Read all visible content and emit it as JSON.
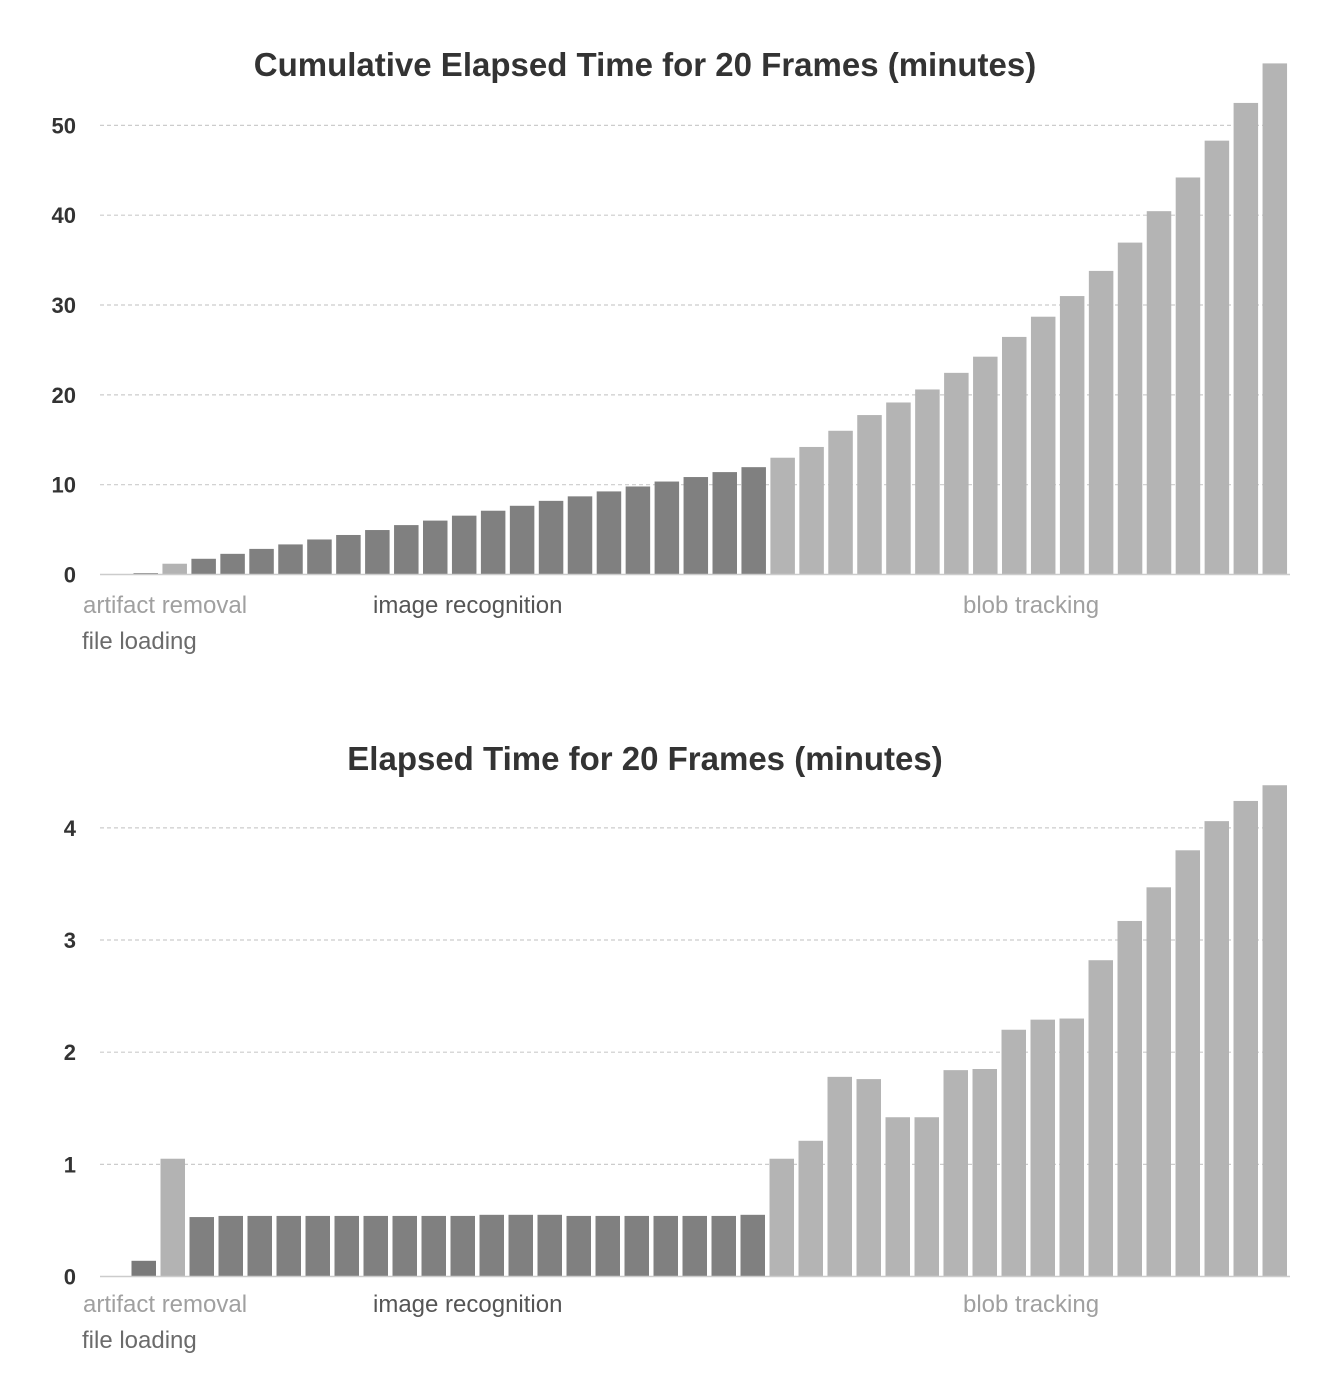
{
  "colors": {
    "file_loading": "#7a7a7a",
    "artifact_removal": "#b3b3b3",
    "image_recognition": "#808080",
    "blob_tracking": "#b4b4b4",
    "label_gray_light": "#a0a0a0",
    "label_gray_dark": "#6b6b6b"
  },
  "chart_data": [
    {
      "type": "bar",
      "title": "Cumulative Elapsed Time for 20 Frames (minutes)",
      "ylim": [
        0,
        56.5
      ],
      "yticks": [
        "0",
        "10",
        "20",
        "30",
        "40",
        "50"
      ],
      "ytick_values": [
        0,
        10,
        20,
        30,
        40,
        50
      ],
      "grid": true,
      "stage_labels": [
        "artifact removal",
        "file loading",
        "image recognition",
        "blob tracking"
      ],
      "values": [
        0.15,
        1.2,
        1.75,
        2.3,
        2.85,
        3.35,
        3.9,
        4.4,
        4.95,
        5.5,
        6.0,
        6.55,
        7.1,
        7.65,
        8.2,
        8.7,
        9.25,
        9.8,
        10.35,
        10.85,
        11.4,
        11.95,
        13.0,
        14.2,
        16.0,
        17.75,
        19.15,
        20.6,
        22.45,
        24.25,
        26.45,
        28.7,
        31.0,
        33.8,
        36.95,
        40.45,
        44.2,
        48.3,
        52.5,
        56.9
      ],
      "stages": [
        "file loading",
        "artifact removal",
        "image recognition",
        "image recognition",
        "image recognition",
        "image recognition",
        "image recognition",
        "image recognition",
        "image recognition",
        "image recognition",
        "image recognition",
        "image recognition",
        "image recognition",
        "image recognition",
        "image recognition",
        "image recognition",
        "image recognition",
        "image recognition",
        "image recognition",
        "image recognition",
        "image recognition",
        "image recognition",
        "blob tracking",
        "blob tracking",
        "blob tracking",
        "blob tracking",
        "blob tracking",
        "blob tracking",
        "blob tracking",
        "blob tracking",
        "blob tracking",
        "blob tracking",
        "blob tracking",
        "blob tracking",
        "blob tracking",
        "blob tracking",
        "blob tracking",
        "blob tracking",
        "blob tracking",
        "blob tracking"
      ]
    },
    {
      "type": "bar",
      "title": "Elapsed Time for 20 Frames (minutes)",
      "ylim": [
        0,
        4.4
      ],
      "yticks": [
        "0",
        "1",
        "2",
        "3",
        "4"
      ],
      "ytick_values": [
        0,
        1,
        2,
        3,
        4
      ],
      "grid": true,
      "stage_labels": [
        "artifact removal",
        "file loading",
        "image recognition",
        "blob tracking"
      ],
      "values": [
        0.14,
        1.05,
        0.53,
        0.54,
        0.54,
        0.54,
        0.54,
        0.54,
        0.54,
        0.54,
        0.54,
        0.54,
        0.55,
        0.55,
        0.55,
        0.54,
        0.54,
        0.54,
        0.54,
        0.54,
        0.54,
        0.55,
        1.05,
        1.21,
        1.78,
        1.76,
        1.42,
        1.42,
        1.84,
        1.85,
        2.2,
        2.29,
        2.3,
        2.82,
        3.17,
        3.47,
        3.8,
        4.06,
        4.24,
        4.38
      ],
      "stages": [
        "file loading",
        "artifact removal",
        "image recognition",
        "image recognition",
        "image recognition",
        "image recognition",
        "image recognition",
        "image recognition",
        "image recognition",
        "image recognition",
        "image recognition",
        "image recognition",
        "image recognition",
        "image recognition",
        "image recognition",
        "image recognition",
        "image recognition",
        "image recognition",
        "image recognition",
        "image recognition",
        "image recognition",
        "image recognition",
        "blob tracking",
        "blob tracking",
        "blob tracking",
        "blob tracking",
        "blob tracking",
        "blob tracking",
        "blob tracking",
        "blob tracking",
        "blob tracking",
        "blob tracking",
        "blob tracking",
        "blob tracking",
        "blob tracking",
        "blob tracking",
        "blob tracking",
        "blob tracking",
        "blob tracking",
        "blob tracking"
      ]
    }
  ]
}
